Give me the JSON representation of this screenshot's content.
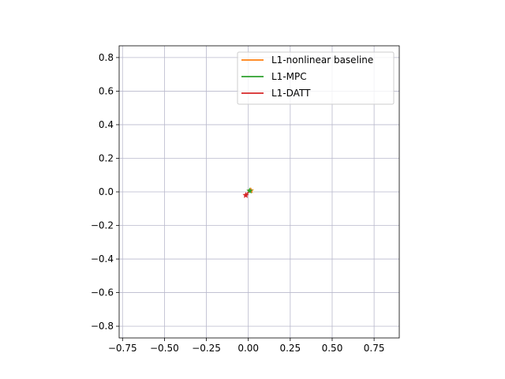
{
  "chart_data": {
    "type": "line",
    "title": "",
    "xlabel": "",
    "ylabel": "",
    "xlim": [
      -0.77,
      0.9
    ],
    "ylim": [
      -0.87,
      0.87
    ],
    "xticks": [
      -0.75,
      -0.5,
      -0.25,
      0.0,
      0.25,
      0.5,
      0.75
    ],
    "yticks": [
      -0.8,
      -0.6,
      -0.4,
      -0.2,
      0.0,
      0.2,
      0.4,
      0.6,
      0.8
    ],
    "xtick_labels": [
      "−0.75",
      "−0.50",
      "−0.25",
      "0.00",
      "0.25",
      "0.50",
      "0.75"
    ],
    "ytick_labels": [
      "−0.8",
      "−0.6",
      "−0.4",
      "−0.2",
      "0.0",
      "0.2",
      "0.4",
      "0.6",
      "0.8"
    ],
    "grid": true,
    "legend_position": "top-right",
    "series": [
      {
        "name": "L1-nonlinear baseline",
        "color": "#ff7f0e",
        "points": [
          {
            "x": 0.0,
            "y": 0.0
          },
          {
            "x": 0.01,
            "y": 0.005
          },
          {
            "x": 0.015,
            "y": 0.008
          }
        ],
        "end_marker": {
          "x": 0.015,
          "y": 0.008
        }
      },
      {
        "name": "L1-MPC",
        "color": "#2ca02c",
        "points": [
          {
            "x": 0.0,
            "y": 0.0
          },
          {
            "x": 0.004,
            "y": 0.004
          },
          {
            "x": 0.008,
            "y": 0.006
          }
        ],
        "end_marker": {
          "x": 0.008,
          "y": 0.006
        }
      },
      {
        "name": "L1-DATT",
        "color": "#d62728",
        "points": [
          {
            "x": 0.0,
            "y": 0.0
          },
          {
            "x": -0.008,
            "y": -0.012
          },
          {
            "x": -0.015,
            "y": -0.02
          }
        ],
        "end_marker": {
          "x": -0.015,
          "y": -0.02
        }
      }
    ]
  }
}
